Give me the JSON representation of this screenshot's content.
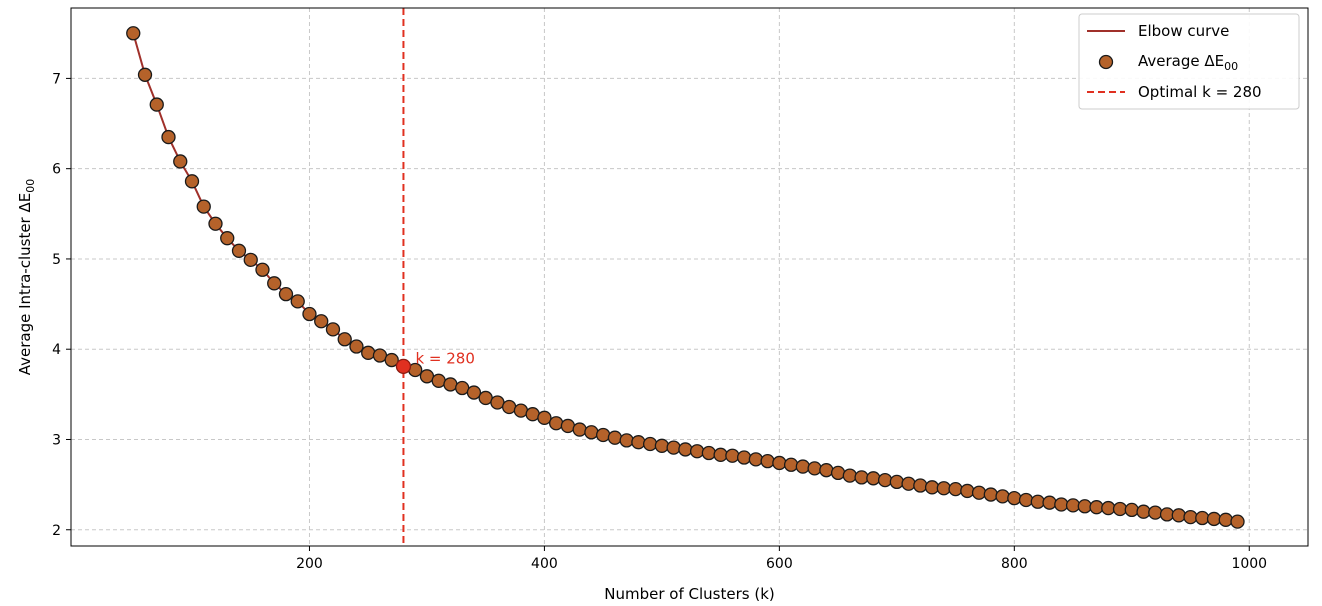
{
  "chart_data": {
    "type": "line",
    "xlabel": "Number of Clusters (k)",
    "ylabel": "Average Intra-cluster ΔE",
    "ylabel_sub": "00",
    "xlim": [
      -3,
      1050
    ],
    "ylim": [
      1.82,
      7.78
    ],
    "xticks": [
      200,
      400,
      600,
      800,
      1000
    ],
    "yticks": [
      2,
      3,
      4,
      5,
      6,
      7
    ],
    "grid": true,
    "legend_position": "top-right",
    "legend": {
      "line_label": "Elbow curve",
      "marker_label": "Average ΔE",
      "marker_label_sub": "00",
      "optimal_label": "Optimal k = 280"
    },
    "optimal_k": 280,
    "optimal_value": 3.81,
    "annotation": "k = 280",
    "colors": {
      "line": "#a0302a",
      "marker_fill": "#b5622a",
      "marker_edge": "#1a1a1a",
      "optimal": "#e03020",
      "grid": "#c8c8c8"
    },
    "x": [
      50,
      60,
      70,
      80,
      90,
      100,
      110,
      120,
      130,
      140,
      150,
      160,
      170,
      180,
      190,
      200,
      210,
      220,
      230,
      240,
      250,
      260,
      270,
      280,
      290,
      300,
      310,
      320,
      330,
      340,
      350,
      360,
      370,
      380,
      390,
      400,
      410,
      420,
      430,
      440,
      450,
      460,
      470,
      480,
      490,
      500,
      510,
      520,
      530,
      540,
      550,
      560,
      570,
      580,
      590,
      600,
      610,
      620,
      630,
      640,
      650,
      660,
      670,
      680,
      690,
      700,
      710,
      720,
      730,
      740,
      750,
      760,
      770,
      780,
      790,
      800,
      810,
      820,
      830,
      840,
      850,
      860,
      870,
      880,
      890,
      900,
      910,
      920,
      930,
      940,
      950,
      960,
      970,
      980,
      990
    ],
    "y": [
      7.5,
      7.04,
      6.71,
      6.35,
      6.08,
      5.86,
      5.58,
      5.39,
      5.23,
      5.09,
      4.99,
      4.88,
      4.73,
      4.61,
      4.53,
      4.39,
      4.31,
      4.22,
      4.11,
      4.03,
      3.96,
      3.93,
      3.88,
      3.81,
      3.77,
      3.7,
      3.65,
      3.61,
      3.57,
      3.52,
      3.46,
      3.41,
      3.36,
      3.32,
      3.28,
      3.24,
      3.18,
      3.15,
      3.11,
      3.08,
      3.05,
      3.02,
      2.99,
      2.97,
      2.95,
      2.93,
      2.91,
      2.89,
      2.87,
      2.85,
      2.83,
      2.82,
      2.8,
      2.78,
      2.76,
      2.74,
      2.72,
      2.7,
      2.68,
      2.66,
      2.63,
      2.6,
      2.58,
      2.57,
      2.55,
      2.53,
      2.51,
      2.49,
      2.47,
      2.46,
      2.45,
      2.43,
      2.41,
      2.39,
      2.37,
      2.35,
      2.33,
      2.31,
      2.3,
      2.28,
      2.27,
      2.26,
      2.25,
      2.24,
      2.23,
      2.22,
      2.2,
      2.19,
      2.17,
      2.16,
      2.14,
      2.13,
      2.12,
      2.11,
      2.09
    ]
  }
}
